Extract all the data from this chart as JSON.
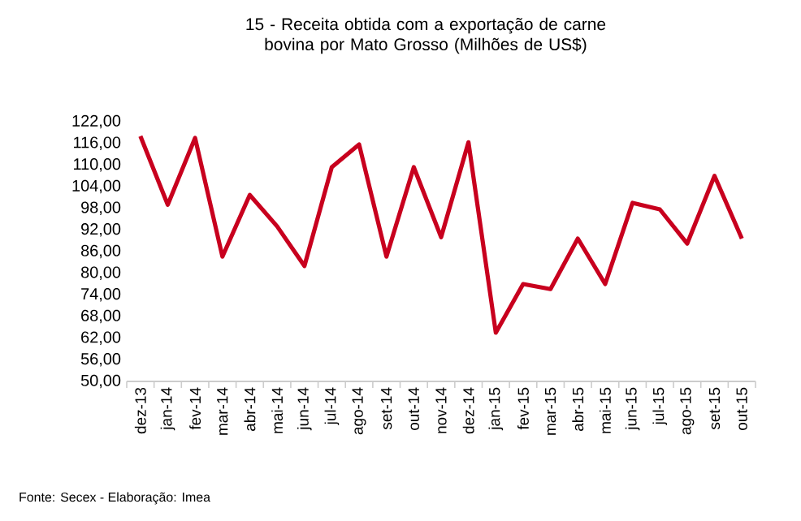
{
  "chart_data": {
    "type": "line",
    "title": "15 - Receita obtida com a exportação de carne bovina por Mato Grosso (Milhões de US$)",
    "categories": [
      "dez-13",
      "jan-14",
      "fev-14",
      "mar-14",
      "abr-14",
      "mai-14",
      "jun-14",
      "jul-14",
      "ago-14",
      "set-14",
      "out-14",
      "nov-14",
      "dez-14",
      "jan-15",
      "fev-15",
      "mar-15",
      "abr-15",
      "mai-15",
      "jun-15",
      "jul-15",
      "ago-15",
      "set-15",
      "out-15"
    ],
    "series": [
      {
        "color": "#c8001e",
        "values": [
          118,
          99,
          117.5,
          84.6,
          101.7,
          93,
          82,
          109.4,
          115.7,
          84.6,
          109.4,
          90,
          116.3,
          63.5,
          77,
          75.6,
          89.6,
          77,
          99.5,
          97.7,
          88.2,
          107,
          89.6
        ]
      }
    ],
    "ylim": [
      50,
      122
    ],
    "yticks": [
      {
        "value": 50,
        "label": "50,00"
      },
      {
        "value": 56,
        "label": "56,00"
      },
      {
        "value": 62,
        "label": "62,00"
      },
      {
        "value": 68,
        "label": "68,00"
      },
      {
        "value": 74,
        "label": "74,00"
      },
      {
        "value": 80,
        "label": "80,00"
      },
      {
        "value": 86,
        "label": "86,00"
      },
      {
        "value": 92,
        "label": "92,00"
      },
      {
        "value": 98,
        "label": "98,00"
      },
      {
        "value": 104,
        "label": "104,00"
      },
      {
        "value": 110,
        "label": "110,00"
      },
      {
        "value": 116,
        "label": "116,00"
      },
      {
        "value": 122,
        "label": "122,00"
      }
    ],
    "grid": false,
    "legend": false,
    "marker": "none",
    "line_style": "solid",
    "annotations": [
      "Fonte: Secex - Elaboração: Imea"
    ]
  }
}
